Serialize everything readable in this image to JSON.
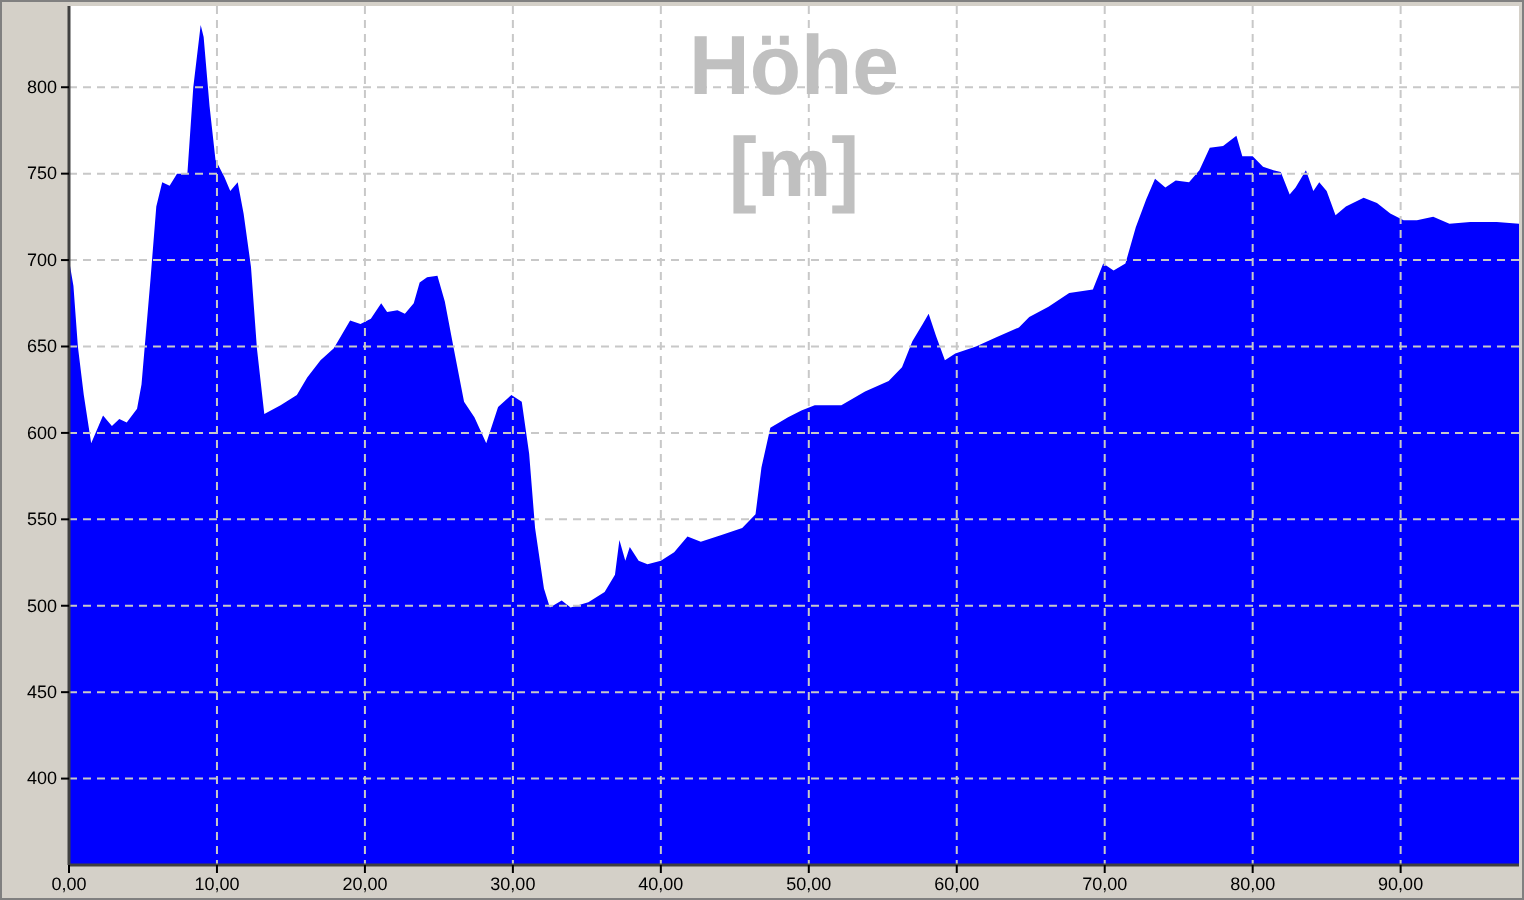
{
  "chart_data": {
    "type": "area",
    "title": "Höhe [m]",
    "x": [
      0,
      0.3,
      0.6,
      1.0,
      1.5,
      2.3,
      2.9,
      3.4,
      3.9,
      4.6,
      4.9,
      5.5,
      5.9,
      6.3,
      6.8,
      7.3,
      8.0,
      8.4,
      8.9,
      9.1,
      9.5,
      9.9,
      10.5,
      10.9,
      11.4,
      11.8,
      12.3,
      12.7,
      13.2,
      14.3,
      15.4,
      16.1,
      17.0,
      17.9,
      19.0,
      19.7,
      20.4,
      21.1,
      21.5,
      22.2,
      22.7,
      23.3,
      23.7,
      24.2,
      24.9,
      25.4,
      26.0,
      26.7,
      27.4,
      28.2,
      29.0,
      29.9,
      30.6,
      31.1,
      31.5,
      32.1,
      32.5,
      33.3,
      33.9,
      35.1,
      36.2,
      36.9,
      37.2,
      37.6,
      37.9,
      38.5,
      39.1,
      40.0,
      40.9,
      41.8,
      42.7,
      44.1,
      45.5,
      46.4,
      46.8,
      47.4,
      48.6,
      49.5,
      50.4,
      52.2,
      53.8,
      55.4,
      56.3,
      57.0,
      57.7,
      58.1,
      58.6,
      59.2,
      59.9,
      61.3,
      62.6,
      64.2,
      64.9,
      66.2,
      67.6,
      69.2,
      69.9,
      70.6,
      71.4,
      72.1,
      72.8,
      73.4,
      74.1,
      74.8,
      75.7,
      76.4,
      77.1,
      78.0,
      78.9,
      79.3,
      80.0,
      80.7,
      81.4,
      81.9,
      82.5,
      82.9,
      83.6,
      84.1,
      84.5,
      85.0,
      85.6,
      86.3,
      87.5,
      88.4,
      89.3,
      90.2,
      91.1,
      92.2,
      93.3,
      94.7,
      96.5,
      98.0
    ],
    "values": [
      700,
      685,
      650,
      622,
      594,
      610,
      604,
      608,
      606,
      614,
      628,
      688,
      731,
      745,
      743,
      750,
      750,
      800,
      836,
      829,
      789,
      758,
      748,
      740,
      745,
      727,
      696,
      649,
      611,
      616,
      622,
      632,
      642,
      649,
      665,
      663,
      666,
      675,
      670,
      671,
      669,
      675,
      687,
      690,
      691,
      676,
      649,
      618,
      609,
      594,
      615,
      622,
      618,
      588,
      545,
      510,
      499,
      503,
      499,
      502,
      508,
      518,
      538,
      526,
      534,
      526,
      524,
      526,
      531,
      540,
      537,
      541,
      545,
      553,
      580,
      603,
      609,
      613,
      616,
      616,
      624,
      630,
      638,
      653,
      663,
      669,
      656,
      642,
      646,
      650,
      655,
      661,
      667,
      673,
      681,
      683,
      698,
      694,
      698,
      719,
      735,
      747,
      742,
      746,
      745,
      752,
      765,
      766,
      772,
      760,
      760,
      754,
      752,
      751,
      738,
      742,
      752,
      740,
      745,
      740,
      726,
      731,
      736,
      733,
      727,
      723,
      723,
      725,
      721,
      722,
      722,
      721
    ],
    "color": "#0000ff",
    "xlim": [
      0,
      98
    ],
    "ylim": [
      350,
      847
    ],
    "xticks": [
      {
        "value": 0,
        "label": "0,00"
      },
      {
        "value": 10,
        "label": "10,00"
      },
      {
        "value": 20,
        "label": "20,00"
      },
      {
        "value": 30,
        "label": "30,00"
      },
      {
        "value": 40,
        "label": "40,00"
      },
      {
        "value": 50,
        "label": "50,00"
      },
      {
        "value": 60,
        "label": "60,00"
      },
      {
        "value": 70,
        "label": "70,00"
      },
      {
        "value": 80,
        "label": "80,00"
      },
      {
        "value": 90,
        "label": "90,00"
      }
    ],
    "yticks": [
      400,
      450,
      500,
      550,
      600,
      650,
      700,
      750,
      800
    ],
    "grid": true
  }
}
